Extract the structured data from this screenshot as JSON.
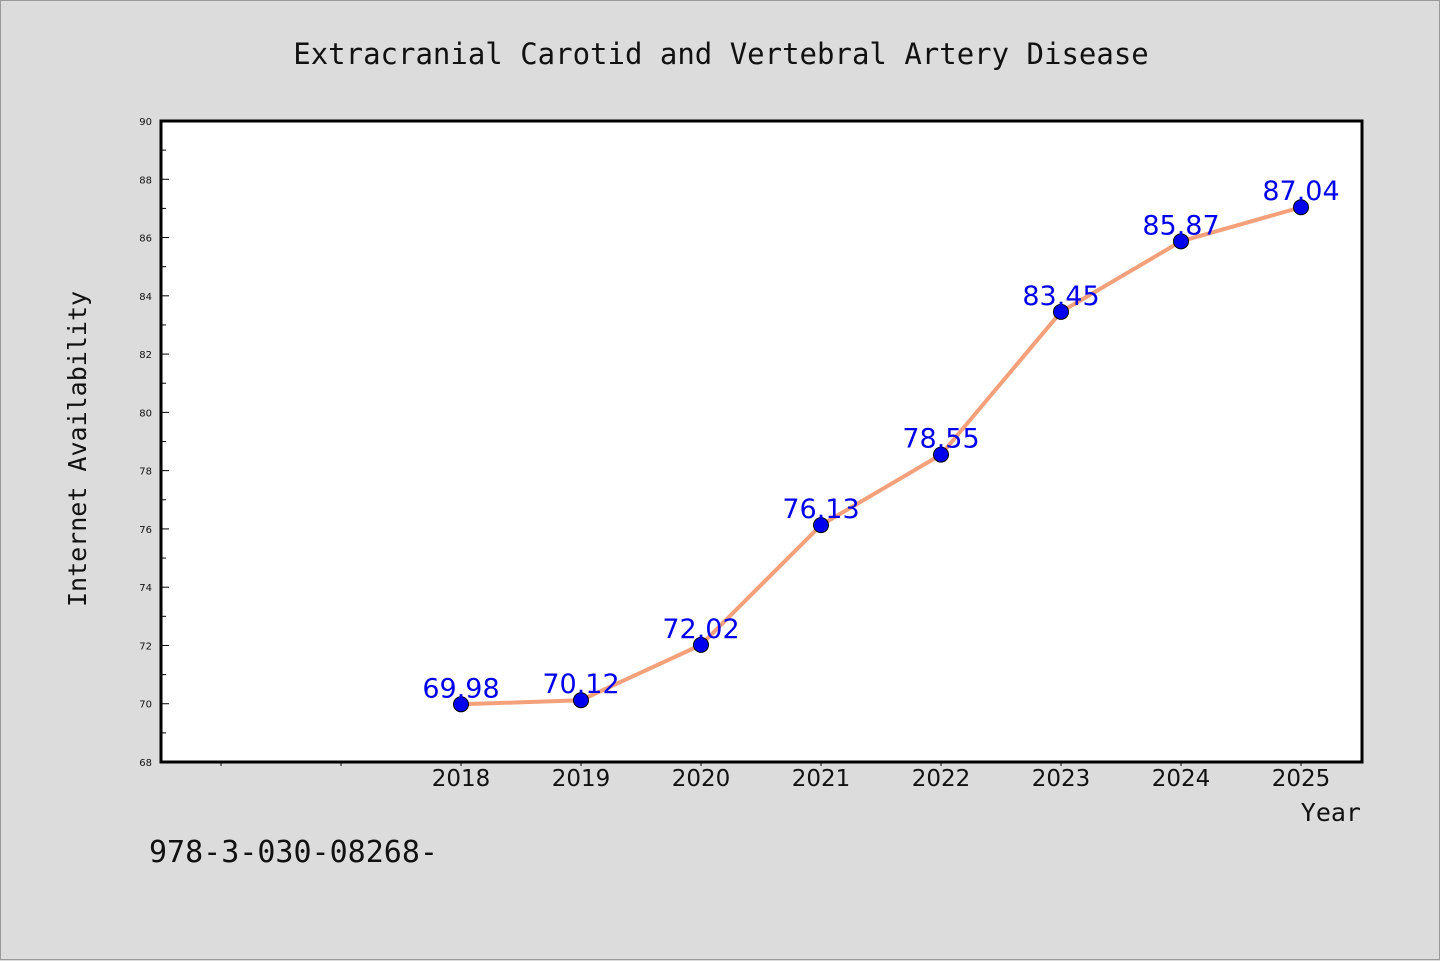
{
  "chart_data": {
    "type": "line",
    "title": "Extracranial Carotid and Vertebral Artery Disease",
    "xlabel": "Year",
    "ylabel": "Internet Availability",
    "x": [
      2018,
      2019,
      2020,
      2021,
      2022,
      2023,
      2024,
      2025
    ],
    "x_tick_labels": [
      "2018",
      "2019",
      "2020",
      "2021",
      "2022",
      "2023",
      "2024",
      "2025"
    ],
    "ylim": [
      68,
      90
    ],
    "y_ticks": [
      68,
      70,
      72,
      74,
      76,
      78,
      80,
      82,
      84,
      86,
      88,
      90
    ],
    "series": [
      {
        "values": [
          69.98,
          70.12,
          72.02,
          76.13,
          78.55,
          83.45,
          85.87,
          87.04
        ],
        "data_labels": [
          "69.98",
          "70.12",
          "72.02",
          "76.13",
          "78.55",
          "83.45",
          "85.87",
          "87.04"
        ],
        "line_color": "#f4a07a",
        "marker_color": "#0000ee",
        "label_color": "#0000ee"
      }
    ],
    "grid": false,
    "legend": "none"
  },
  "footnote": "978-3-030-08268-"
}
